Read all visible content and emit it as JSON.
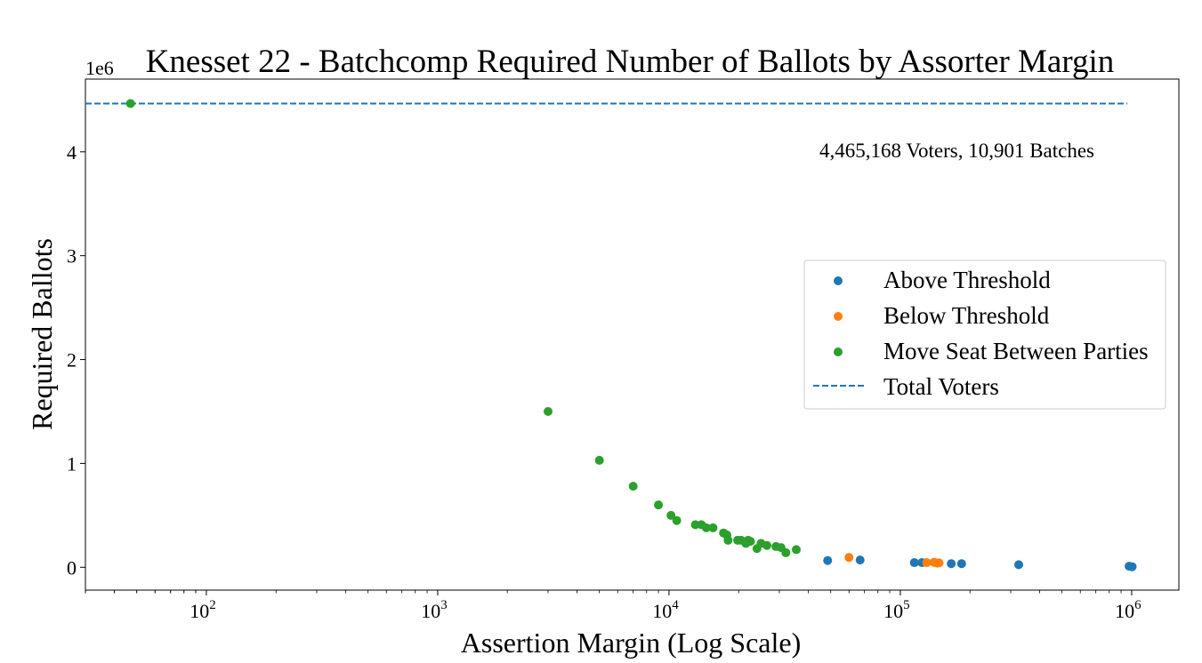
{
  "chart_data": {
    "type": "scatter",
    "title": "Knesset 22 - Batchcomp Required Number of Ballots by Assorter Margin",
    "xlabel": "Assertion Margin (Log Scale)",
    "ylabel": "Required Ballots",
    "xscale": "log",
    "y_offset_text": "1e6",
    "xlim": [
      30,
      1600000
    ],
    "ylim": [
      -220000,
      4700000
    ],
    "x_ticks": [
      {
        "value": 100,
        "base": "10",
        "exp": "2"
      },
      {
        "value": 1000,
        "base": "10",
        "exp": "3"
      },
      {
        "value": 10000,
        "base": "10",
        "exp": "4"
      },
      {
        "value": 100000,
        "base": "10",
        "exp": "5"
      },
      {
        "value": 1000000,
        "base": "10",
        "exp": "6"
      }
    ],
    "y_ticks": [
      {
        "value": 0,
        "label": "0"
      },
      {
        "value": 1000000,
        "label": "1"
      },
      {
        "value": 2000000,
        "label": "2"
      },
      {
        "value": 3000000,
        "label": "3"
      },
      {
        "value": 4000000,
        "label": "4"
      }
    ],
    "annotation": "4,465,168 Voters, 10,901 Batches",
    "grid": false,
    "legend_position": "center-right",
    "series": [
      {
        "name": "Above Threshold",
        "color": "#1f77b4",
        "points": [
          [
            48500,
            65000
          ],
          [
            67000,
            70000
          ],
          [
            115000,
            45000
          ],
          [
            124000,
            45000
          ],
          [
            166000,
            35000
          ],
          [
            184000,
            35000
          ],
          [
            325000,
            25000
          ],
          [
            975000,
            10000
          ],
          [
            1005000,
            5000
          ]
        ]
      },
      {
        "name": "Below Threshold",
        "color": "#ff7f0e",
        "points": [
          [
            60000,
            95000
          ],
          [
            130000,
            45000
          ],
          [
            140000,
            48000
          ],
          [
            144000,
            40000
          ],
          [
            147000,
            42000
          ]
        ]
      },
      {
        "name": "Move Seat Between Parties",
        "color": "#2ca02c",
        "points": [
          [
            47,
            4465168
          ],
          [
            3000,
            1500000
          ],
          [
            5000,
            1030000
          ],
          [
            7000,
            780000
          ],
          [
            9000,
            600000
          ],
          [
            10200,
            500000
          ],
          [
            10800,
            450000
          ],
          [
            13000,
            410000
          ],
          [
            13800,
            410000
          ],
          [
            14500,
            380000
          ],
          [
            15500,
            380000
          ],
          [
            17200,
            330000
          ],
          [
            17800,
            310000
          ],
          [
            18000,
            260000
          ],
          [
            19800,
            260000
          ],
          [
            20500,
            260000
          ],
          [
            21500,
            230000
          ],
          [
            22000,
            260000
          ],
          [
            22500,
            250000
          ],
          [
            24000,
            180000
          ],
          [
            25000,
            230000
          ],
          [
            26500,
            210000
          ],
          [
            29000,
            200000
          ],
          [
            30500,
            190000
          ],
          [
            32000,
            140000
          ],
          [
            35500,
            170000
          ]
        ]
      }
    ],
    "reference_line": {
      "name": "Total Voters",
      "value": 4465168,
      "color": "#1f77b4",
      "style": "dashed"
    }
  }
}
